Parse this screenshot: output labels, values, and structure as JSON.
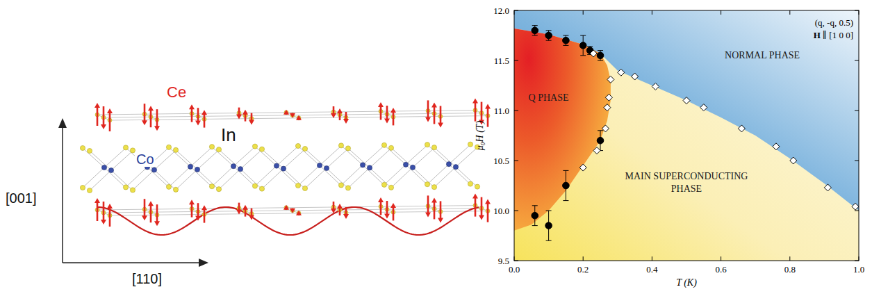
{
  "diagram": {
    "atoms": [
      "Ce",
      "Co",
      "In"
    ],
    "axes": [
      "[001]",
      "[110]"
    ]
  },
  "chart_data": {
    "type": "scatter",
    "xlabel": "T (K)",
    "ylabel": "μ₀H (T)",
    "xlim": [
      0,
      1.0
    ],
    "ylim": [
      9.5,
      12.0
    ],
    "xticks": [
      {
        "value": 0,
        "label": "0.0"
      },
      0.2,
      0.4,
      0.6,
      0.8,
      {
        "value": 1.0,
        "label": "1.0"
      }
    ],
    "yticks": [
      9.5,
      {
        "value": 10.0,
        "label": "10.0"
      },
      10.5,
      {
        "value": 11.0,
        "label": "11.0"
      },
      11.5,
      {
        "value": 12.0,
        "label": "12.0"
      }
    ],
    "grid": false,
    "annotations": [
      "(q, -q, 0.5)",
      "H ∥ [1 0 0]",
      "NORMAL PHASE",
      "Q PHASE",
      "MAIN SUPERCONDUCTING PHASE"
    ],
    "series": [
      {
        "marker": "circle",
        "color": "#000000",
        "x": [
          0.06,
          0.1,
          0.15,
          0.2,
          0.22,
          0.25,
          0.25,
          0.15,
          0.1,
          0.06
        ],
        "values": [
          11.8,
          11.75,
          11.7,
          11.65,
          11.6,
          11.55,
          10.7,
          10.25,
          9.85,
          9.95
        ],
        "errors": [
          0.05,
          0.05,
          0.05,
          0.1,
          0.04,
          0.05,
          0.1,
          0.15,
          0.15,
          0.1
        ]
      },
      {
        "marker": "diamond",
        "color": "#ffffff",
        "x": [
          0.23,
          0.28,
          0.275,
          0.27,
          0.265,
          0.24,
          0.2,
          0.31,
          0.35,
          0.41,
          0.5,
          0.55,
          0.66,
          0.76,
          0.81,
          0.91,
          0.99
        ],
        "values": [
          11.57,
          11.31,
          11.13,
          11.03,
          10.82,
          10.6,
          10.43,
          11.38,
          11.34,
          11.24,
          11.1,
          11.03,
          10.82,
          10.64,
          10.5,
          10.23,
          10.04
        ]
      }
    ],
    "phase_boundaries": {
      "upper": {
        "x": [
          0,
          0.1,
          0.2,
          0.25,
          0.3,
          0.4,
          0.5,
          0.6,
          0.7,
          0.8,
          0.9,
          1.0
        ],
        "y": [
          11.82,
          11.76,
          11.66,
          11.57,
          11.4,
          11.25,
          11.1,
          10.93,
          10.75,
          10.52,
          10.27,
          10.0
        ]
      },
      "q_phase": {
        "x": [
          0.25,
          0.27,
          0.28,
          0.28,
          0.27,
          0.25,
          0.2,
          0.15,
          0.1,
          0.05,
          0
        ],
        "y": [
          11.57,
          11.45,
          11.3,
          11.1,
          10.9,
          10.7,
          10.45,
          10.2,
          10.0,
          9.86,
          9.8
        ]
      }
    }
  }
}
